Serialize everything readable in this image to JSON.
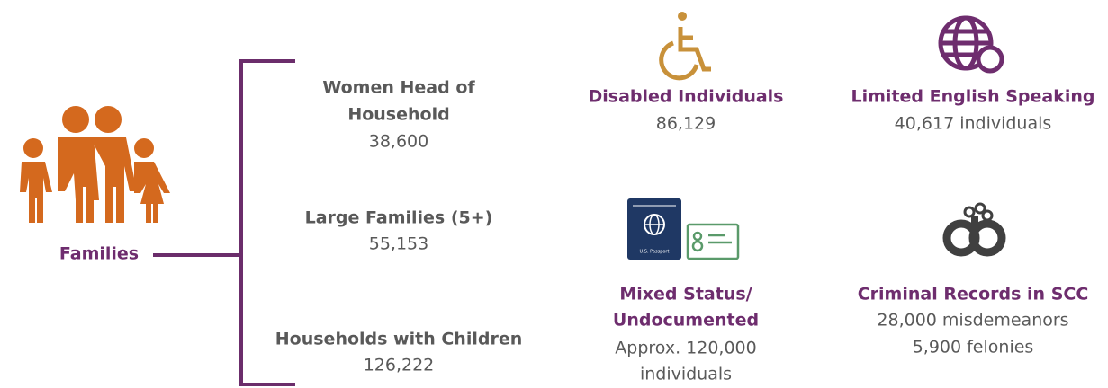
{
  "families": {
    "label": "Families"
  },
  "groups": [
    {
      "title": [
        "Women Head of",
        "Household"
      ],
      "value": "38,600"
    },
    {
      "title": [
        "Large Families (5+)"
      ],
      "value": "55,153"
    },
    {
      "title": [
        "Households with Children"
      ],
      "value": "126,222"
    }
  ],
  "populations": [
    {
      "title": [
        "Disabled Individuals"
      ],
      "value": [
        "86,129"
      ]
    },
    {
      "title": [
        "Limited English Speaking"
      ],
      "value": [
        "40,617 individuals"
      ]
    },
    {
      "title": [
        "Mixed Status/",
        "Undocumented"
      ],
      "value": [
        "Approx. 120,000",
        "individuals"
      ]
    },
    {
      "title": [
        "Criminal Records in SCC"
      ],
      "value": [
        "28,000 misdemeanors",
        "5,900 felonies"
      ]
    }
  ],
  "icons": {
    "passport_label": "U.S. Passport"
  }
}
